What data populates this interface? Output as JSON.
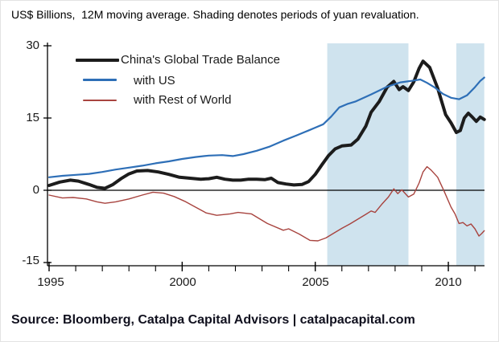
{
  "title": "US$ Billions,  12M moving average. Shading denotes periods of yuan revaluation.",
  "source": "Source: Bloomberg, Catalpa Capital Advisors | catalpacapital.com",
  "colors": {
    "global_series": "#1c1c1c",
    "us_series": "#2e6fb7",
    "row_series": "#a8443f",
    "shading": "#cfe3ee",
    "axis": "#000000"
  },
  "y_axis": {
    "ticks": [
      "30",
      "15",
      "0",
      "-15"
    ]
  },
  "x_axis": {
    "ticks": [
      "1995",
      "2000",
      "2005",
      "2010"
    ]
  },
  "chart_data": {
    "type": "line",
    "title": "US$ Billions, 12M moving average. Shading denotes periods of yuan revaluation.",
    "xlabel": "",
    "ylabel": "US$ Billions",
    "x_range": [
      1995,
      2011.35
    ],
    "ylim": [
      -15,
      30
    ],
    "y_ticks": [
      30,
      15,
      0,
      -15
    ],
    "x_major_ticks": [
      1995,
      2000,
      2005,
      2010
    ],
    "x_minor_tick_interval": 1,
    "grid": false,
    "legend_position": "top-left-inside",
    "shading_note": "shaded bands mark periods of yuan revaluation",
    "shading_periods": [
      [
        2005.45,
        2008.5
      ],
      [
        2010.3,
        2011.35
      ]
    ],
    "series": [
      {
        "name": "China's Global Trade Balance",
        "color_key": "global_series",
        "width": 4,
        "points": [
          [
            1995.0,
            1.0
          ],
          [
            1995.4,
            1.7
          ],
          [
            1995.8,
            2.1
          ],
          [
            1996.1,
            1.9
          ],
          [
            1996.5,
            1.2
          ],
          [
            1996.8,
            0.6
          ],
          [
            1997.1,
            0.4
          ],
          [
            1997.4,
            1.2
          ],
          [
            1997.7,
            2.4
          ],
          [
            1998.0,
            3.4
          ],
          [
            1998.3,
            4.0
          ],
          [
            1998.7,
            4.1
          ],
          [
            1999.1,
            3.8
          ],
          [
            1999.5,
            3.3
          ],
          [
            1999.9,
            2.7
          ],
          [
            2000.3,
            2.5
          ],
          [
            2000.7,
            2.3
          ],
          [
            2001.0,
            2.4
          ],
          [
            2001.3,
            2.7
          ],
          [
            2001.6,
            2.3
          ],
          [
            2001.9,
            2.1
          ],
          [
            2002.2,
            2.1
          ],
          [
            2002.5,
            2.3
          ],
          [
            2002.8,
            2.3
          ],
          [
            2003.1,
            2.2
          ],
          [
            2003.35,
            2.5
          ],
          [
            2003.6,
            1.6
          ],
          [
            2003.9,
            1.3
          ],
          [
            2004.2,
            1.1
          ],
          [
            2004.5,
            1.2
          ],
          [
            2004.75,
            1.8
          ],
          [
            2005.0,
            3.3
          ],
          [
            2005.25,
            5.3
          ],
          [
            2005.5,
            7.2
          ],
          [
            2005.75,
            8.6
          ],
          [
            2006.0,
            9.2
          ],
          [
            2006.35,
            9.4
          ],
          [
            2006.6,
            10.6
          ],
          [
            2006.9,
            13.3
          ],
          [
            2007.1,
            16.2
          ],
          [
            2007.4,
            18.4
          ],
          [
            2007.7,
            21.4
          ],
          [
            2007.95,
            22.6
          ],
          [
            2008.15,
            20.9
          ],
          [
            2008.3,
            21.5
          ],
          [
            2008.5,
            20.7
          ],
          [
            2008.7,
            22.5
          ],
          [
            2008.9,
            25.3
          ],
          [
            2009.05,
            26.8
          ],
          [
            2009.3,
            25.5
          ],
          [
            2009.6,
            21.2
          ],
          [
            2009.9,
            15.7
          ],
          [
            2010.1,
            14.0
          ],
          [
            2010.3,
            12.0
          ],
          [
            2010.45,
            12.4
          ],
          [
            2010.6,
            15.0
          ],
          [
            2010.75,
            16.0
          ],
          [
            2010.9,
            15.2
          ],
          [
            2011.05,
            14.3
          ],
          [
            2011.2,
            15.2
          ],
          [
            2011.35,
            14.7
          ]
        ]
      },
      {
        "name": "with US",
        "color_key": "us_series",
        "width": 2.2,
        "points": [
          [
            1995.0,
            2.7
          ],
          [
            1995.5,
            3.0
          ],
          [
            1996.0,
            3.2
          ],
          [
            1996.5,
            3.4
          ],
          [
            1997.0,
            3.8
          ],
          [
            1997.5,
            4.3
          ],
          [
            1998.0,
            4.7
          ],
          [
            1998.5,
            5.1
          ],
          [
            1999.0,
            5.6
          ],
          [
            1999.5,
            6.0
          ],
          [
            2000.0,
            6.5
          ],
          [
            2000.5,
            6.9
          ],
          [
            2001.0,
            7.2
          ],
          [
            2001.5,
            7.3
          ],
          [
            2001.9,
            7.1
          ],
          [
            2002.3,
            7.5
          ],
          [
            2002.8,
            8.2
          ],
          [
            2003.3,
            9.1
          ],
          [
            2003.8,
            10.3
          ],
          [
            2004.3,
            11.4
          ],
          [
            2004.7,
            12.3
          ],
          [
            2005.0,
            13.0
          ],
          [
            2005.3,
            13.7
          ],
          [
            2005.6,
            15.3
          ],
          [
            2005.9,
            17.2
          ],
          [
            2006.2,
            17.9
          ],
          [
            2006.5,
            18.4
          ],
          [
            2007.1,
            19.9
          ],
          [
            2007.7,
            21.5
          ],
          [
            2008.2,
            22.4
          ],
          [
            2008.6,
            22.7
          ],
          [
            2008.95,
            23.0
          ],
          [
            2009.2,
            22.3
          ],
          [
            2009.5,
            21.3
          ],
          [
            2009.8,
            20.0
          ],
          [
            2010.1,
            19.2
          ],
          [
            2010.4,
            18.9
          ],
          [
            2010.7,
            19.7
          ],
          [
            2011.0,
            21.4
          ],
          [
            2011.2,
            22.7
          ],
          [
            2011.35,
            23.4
          ]
        ]
      },
      {
        "name": "with Rest of World",
        "color_key": "row_series",
        "width": 1.4,
        "points": [
          [
            1995.0,
            -1.0
          ],
          [
            1995.5,
            -1.6
          ],
          [
            1995.9,
            -1.5
          ],
          [
            1996.4,
            -1.8
          ],
          [
            1996.8,
            -2.4
          ],
          [
            1997.1,
            -2.7
          ],
          [
            1997.5,
            -2.4
          ],
          [
            1998.0,
            -1.8
          ],
          [
            1998.5,
            -1.0
          ],
          [
            1998.9,
            -0.4
          ],
          [
            1999.3,
            -0.6
          ],
          [
            1999.7,
            -1.3
          ],
          [
            2000.1,
            -2.3
          ],
          [
            2000.5,
            -3.5
          ],
          [
            2000.9,
            -4.7
          ],
          [
            2001.3,
            -5.2
          ],
          [
            2001.8,
            -4.9
          ],
          [
            2002.1,
            -4.6
          ],
          [
            2002.6,
            -4.9
          ],
          [
            2003.2,
            -6.9
          ],
          [
            2003.8,
            -8.3
          ],
          [
            2004.0,
            -8.0
          ],
          [
            2004.4,
            -9.1
          ],
          [
            2004.8,
            -10.4
          ],
          [
            2005.1,
            -10.5
          ],
          [
            2005.4,
            -9.9
          ],
          [
            2005.7,
            -8.9
          ],
          [
            2006.0,
            -7.9
          ],
          [
            2006.3,
            -7.0
          ],
          [
            2006.6,
            -6.0
          ],
          [
            2006.9,
            -5.0
          ],
          [
            2007.1,
            -4.3
          ],
          [
            2007.25,
            -4.6
          ],
          [
            2007.5,
            -2.9
          ],
          [
            2007.75,
            -1.4
          ],
          [
            2007.95,
            0.3
          ],
          [
            2008.1,
            -0.7
          ],
          [
            2008.25,
            0.1
          ],
          [
            2008.5,
            -1.4
          ],
          [
            2008.7,
            -0.8
          ],
          [
            2008.9,
            1.5
          ],
          [
            2009.05,
            3.8
          ],
          [
            2009.2,
            4.9
          ],
          [
            2009.35,
            4.2
          ],
          [
            2009.6,
            2.7
          ],
          [
            2009.85,
            -0.3
          ],
          [
            2010.1,
            -3.5
          ],
          [
            2010.25,
            -4.9
          ],
          [
            2010.4,
            -6.9
          ],
          [
            2010.55,
            -6.7
          ],
          [
            2010.7,
            -7.4
          ],
          [
            2010.85,
            -7.0
          ],
          [
            2011.0,
            -8.0
          ],
          [
            2011.15,
            -9.5
          ],
          [
            2011.25,
            -9.0
          ],
          [
            2011.35,
            -8.4
          ]
        ]
      }
    ]
  }
}
